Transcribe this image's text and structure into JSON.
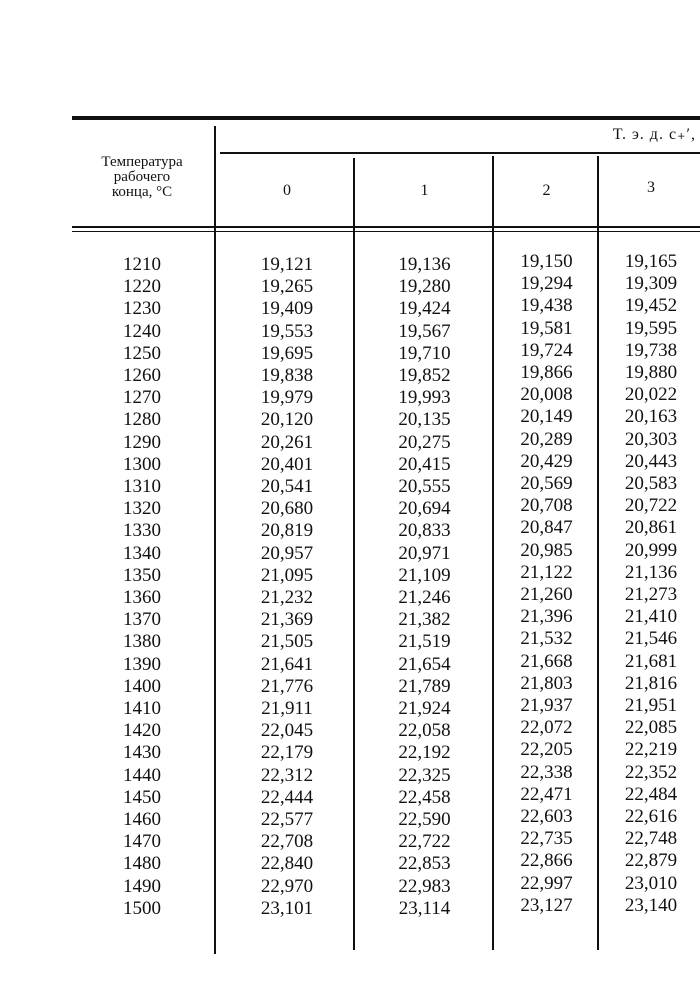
{
  "table": {
    "super_header": "Т. э. д. с₊′,",
    "row_header": [
      "Температура",
      "рабочего",
      "конца, °С"
    ],
    "columns": [
      "0",
      "1",
      "2",
      "3"
    ],
    "rows": [
      {
        "t": "1210",
        "v": [
          "19,121",
          "19,136",
          "19,150",
          "19,165"
        ]
      },
      {
        "t": "1220",
        "v": [
          "19,265",
          "19,280",
          "19,294",
          "19,309"
        ]
      },
      {
        "t": "1230",
        "v": [
          "19,409",
          "19,424",
          "19,438",
          "19,452"
        ]
      },
      {
        "t": "1240",
        "v": [
          "19,553",
          "19,567",
          "19,581",
          "19,595"
        ]
      },
      {
        "t": "1250",
        "v": [
          "19,695",
          "19,710",
          "19,724",
          "19,738"
        ]
      },
      {
        "t": "1260",
        "v": [
          "19,838",
          "19,852",
          "19,866",
          "19,880"
        ]
      },
      {
        "t": "1270",
        "v": [
          "19,979",
          "19,993",
          "20,008",
          "20,022"
        ]
      },
      {
        "t": "1280",
        "v": [
          "20,120",
          "20,135",
          "20,149",
          "20,163"
        ]
      },
      {
        "t": "1290",
        "v": [
          "20,261",
          "20,275",
          "20,289",
          "20,303"
        ]
      },
      {
        "t": "1300",
        "v": [
          "20,401",
          "20,415",
          "20,429",
          "20,443"
        ]
      },
      {
        "t": "1310",
        "v": [
          "20,541",
          "20,555",
          "20,569",
          "20,583"
        ]
      },
      {
        "t": "1320",
        "v": [
          "20,680",
          "20,694",
          "20,708",
          "20,722"
        ]
      },
      {
        "t": "1330",
        "v": [
          "20,819",
          "20,833",
          "20,847",
          "20,861"
        ]
      },
      {
        "t": "1340",
        "v": [
          "20,957",
          "20,971",
          "20,985",
          "20,999"
        ]
      },
      {
        "t": "1350",
        "v": [
          "21,095",
          "21,109",
          "21,122",
          "21,136"
        ]
      },
      {
        "t": "1360",
        "v": [
          "21,232",
          "21,246",
          "21,260",
          "21,273"
        ]
      },
      {
        "t": "1370",
        "v": [
          "21,369",
          "21,382",
          "21,396",
          "21,410"
        ]
      },
      {
        "t": "1380",
        "v": [
          "21,505",
          "21,519",
          "21,532",
          "21,546"
        ]
      },
      {
        "t": "1390",
        "v": [
          "21,641",
          "21,654",
          "21,668",
          "21,681"
        ]
      },
      {
        "t": "1400",
        "v": [
          "21,776",
          "21,789",
          "21,803",
          "21,816"
        ]
      },
      {
        "t": "1410",
        "v": [
          "21,911",
          "21,924",
          "21,937",
          "21,951"
        ]
      },
      {
        "t": "1420",
        "v": [
          "22,045",
          "22,058",
          "22,072",
          "22,085"
        ]
      },
      {
        "t": "1430",
        "v": [
          "22,179",
          "22,192",
          "22,205",
          "22,219"
        ]
      },
      {
        "t": "1440",
        "v": [
          "22,312",
          "22,325",
          "22,338",
          "22,352"
        ]
      },
      {
        "t": "1450",
        "v": [
          "22,444",
          "22,458",
          "22,471",
          "22,484"
        ]
      },
      {
        "t": "1460",
        "v": [
          "22,577",
          "22,590",
          "22,603",
          "22,616"
        ]
      },
      {
        "t": "1470",
        "v": [
          "22,708",
          "22,722",
          "22,735",
          "22,748"
        ]
      },
      {
        "t": "1480",
        "v": [
          "22,840",
          "22,853",
          "22,866",
          "22,879"
        ]
      },
      {
        "t": "1490",
        "v": [
          "22,970",
          "22,983",
          "22,997",
          "23,010"
        ]
      },
      {
        "t": "1500",
        "v": [
          "23,101",
          "23,114",
          "23,127",
          "23,140"
        ]
      }
    ]
  }
}
